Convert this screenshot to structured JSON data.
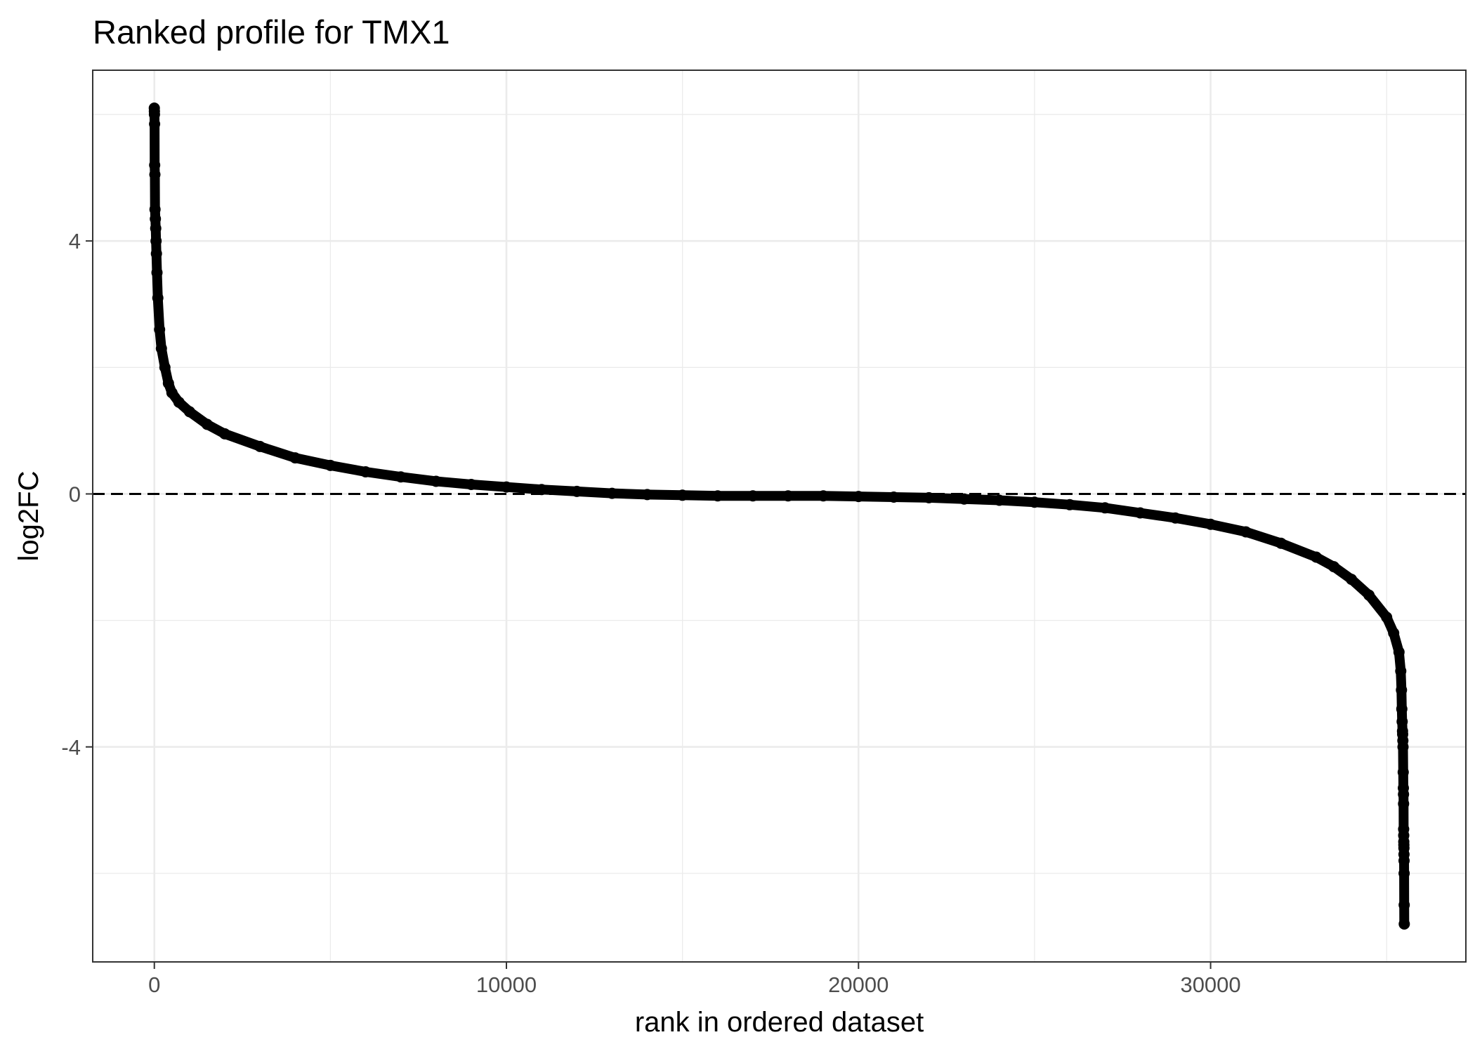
{
  "chart_data": {
    "type": "scatter",
    "title": "Ranked profile for TMX1",
    "xlabel": "rank in ordered dataset",
    "ylabel": "log2FC",
    "xlim": [
      -1750,
      37250
    ],
    "ylim": [
      -7.4,
      6.7
    ],
    "x_ticks": [
      0,
      10000,
      20000,
      30000
    ],
    "x_tick_labels": [
      "0",
      "10000",
      "20000",
      "30000"
    ],
    "y_ticks": [
      4,
      0,
      -4
    ],
    "y_tick_labels": [
      "4",
      "0",
      "-4"
    ],
    "x_minor_gridlines": [
      5000,
      15000,
      25000,
      35000
    ],
    "y_minor_gridlines": [
      6,
      2,
      -2,
      -6
    ],
    "grid": true,
    "legend": "none",
    "reference_line": {
      "y": 0,
      "style": "dashed"
    },
    "series": [
      {
        "x": [
          0,
          2,
          4,
          7,
          10,
          15,
          20,
          30,
          40,
          50,
          60,
          75,
          100,
          150,
          200,
          300,
          400,
          500,
          700,
          1000,
          1500,
          2000,
          3000,
          4000,
          5000,
          6000,
          7000,
          8000,
          9000,
          10000,
          11000,
          12000,
          13000,
          14000,
          15000,
          16000,
          17000,
          18000,
          19000,
          20000,
          21000,
          22000,
          23000,
          24000,
          25000,
          26000,
          27000,
          28000,
          29000,
          30000,
          31000,
          32000,
          33000,
          33500,
          34000,
          34500,
          35000,
          35200,
          35350,
          35400,
          35420,
          35430,
          35440,
          35450,
          35455,
          35460,
          35465,
          35470,
          35475,
          35478,
          35480,
          35482,
          35484,
          35486,
          35488,
          35490,
          35492,
          35494,
          35496,
          35498,
          35500
        ],
        "y": [
          6.1,
          6.05,
          6.0,
          5.85,
          5.2,
          5.05,
          4.5,
          4.35,
          4.2,
          4.0,
          3.8,
          3.5,
          3.1,
          2.6,
          2.3,
          2.0,
          1.75,
          1.6,
          1.45,
          1.3,
          1.1,
          0.95,
          0.75,
          0.57,
          0.45,
          0.35,
          0.27,
          0.2,
          0.15,
          0.11,
          0.07,
          0.04,
          0.01,
          -0.01,
          -0.02,
          -0.03,
          -0.03,
          -0.03,
          -0.03,
          -0.04,
          -0.05,
          -0.06,
          -0.08,
          -0.1,
          -0.13,
          -0.17,
          -0.22,
          -0.3,
          -0.38,
          -0.48,
          -0.6,
          -0.78,
          -1.0,
          -1.15,
          -1.35,
          -1.6,
          -1.95,
          -2.2,
          -2.5,
          -2.8,
          -3.1,
          -3.4,
          -3.6,
          -3.75,
          -3.8,
          -3.9,
          -4.0,
          -4.4,
          -4.65,
          -4.75,
          -4.9,
          -5.3,
          -5.4,
          -5.5,
          -5.55,
          -5.6,
          -5.7,
          -5.8,
          -6.0,
          -6.5,
          -6.8
        ]
      }
    ]
  }
}
